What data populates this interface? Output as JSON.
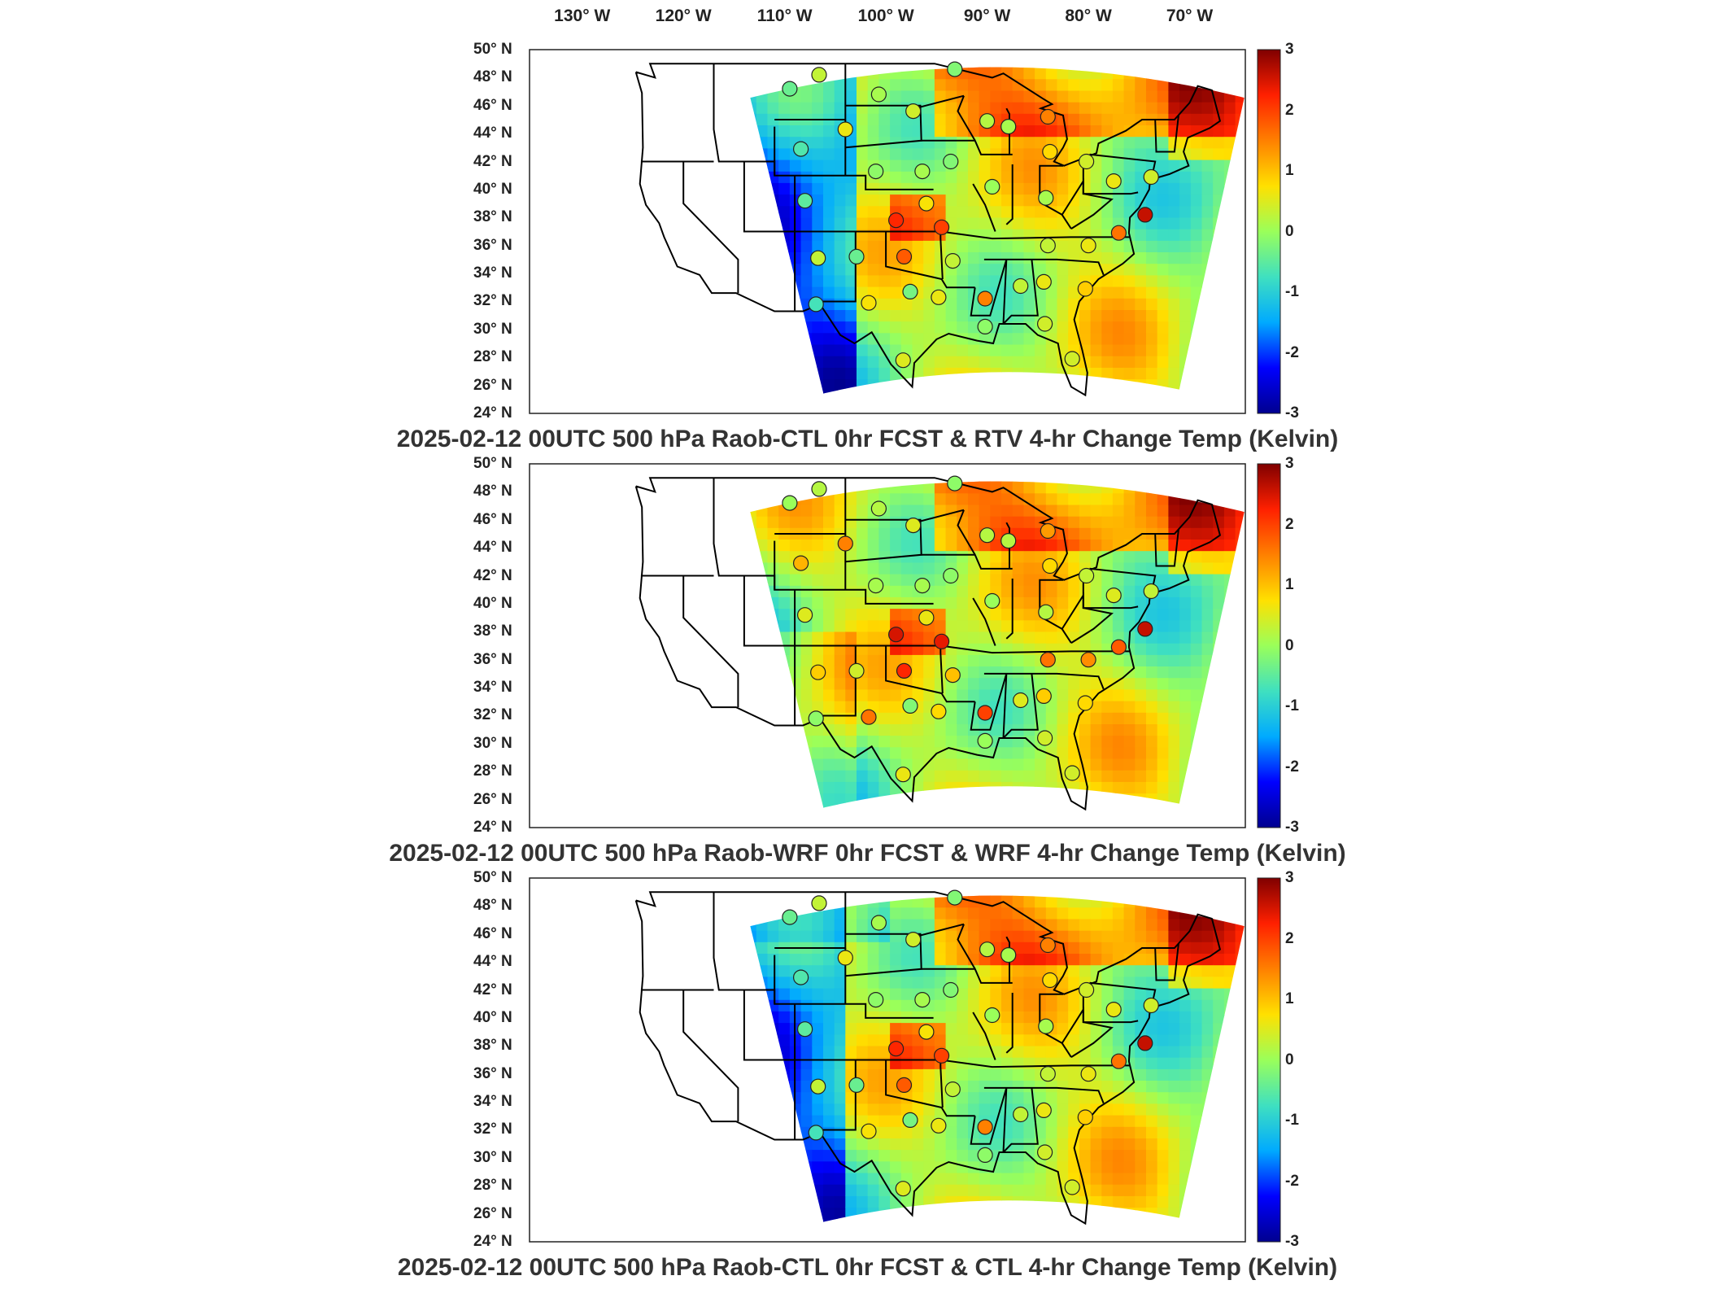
{
  "figure": {
    "lon_ticks": [
      "130",
      "120",
      "110",
      "100",
      "90",
      "80",
      "70"
    ],
    "lon_suffix": " W",
    "lat_ticks": [
      "50",
      "48",
      "46",
      "44",
      "42",
      "40",
      "38",
      "36",
      "34",
      "32",
      "30",
      "28",
      "26",
      "24"
    ],
    "lat_suffix": " N",
    "degree": "°",
    "colorbar": {
      "ticks": [
        "3",
        "2",
        "1",
        "0",
        "-1",
        "-2",
        "-3"
      ],
      "range": [
        -3,
        3
      ],
      "colors": [
        "#00008f",
        "#0000ff",
        "#00aaff",
        "#3fe0c0",
        "#9aff5a",
        "#ffe000",
        "#ff8000",
        "#ff2000",
        "#800000"
      ]
    }
  },
  "panels": [
    {
      "title": "2025-02-12 00UTC 500 hPa Raob-CTL 0hr FCST & RTV 4-hr Change Temp (Kelvin)",
      "field_style": "rtv",
      "stations": [
        {
          "lon": -109.5,
          "lat": 47.2,
          "v": -0.4
        },
        {
          "lon": -106.6,
          "lat": 48.2,
          "v": 0.3
        },
        {
          "lon": -100.7,
          "lat": 46.8,
          "v": 0.1
        },
        {
          "lon": -97.3,
          "lat": 45.6,
          "v": 0.4
        },
        {
          "lon": -93.2,
          "lat": 48.6,
          "v": -0.2
        },
        {
          "lon": -84.0,
          "lat": 45.2,
          "v": 1.5
        },
        {
          "lon": -90.0,
          "lat": 44.9,
          "v": 0.2
        },
        {
          "lon": -87.9,
          "lat": 44.5,
          "v": 0.1
        },
        {
          "lon": -104.0,
          "lat": 44.3,
          "v": 0.6
        },
        {
          "lon": -108.4,
          "lat": 42.9,
          "v": -0.6
        },
        {
          "lon": -101.0,
          "lat": 41.3,
          "v": -0.1
        },
        {
          "lon": -96.4,
          "lat": 41.3,
          "v": 0.1
        },
        {
          "lon": -93.6,
          "lat": 42.0,
          "v": -0.2
        },
        {
          "lon": -89.5,
          "lat": 40.2,
          "v": 0.0
        },
        {
          "lon": -83.8,
          "lat": 42.7,
          "v": 0.8
        },
        {
          "lon": -80.2,
          "lat": 42.0,
          "v": 0.4
        },
        {
          "lon": -84.2,
          "lat": 39.4,
          "v": 0.1
        },
        {
          "lon": -77.5,
          "lat": 40.6,
          "v": 0.6
        },
        {
          "lon": -73.8,
          "lat": 40.9,
          "v": 0.4
        },
        {
          "lon": -74.4,
          "lat": 38.2,
          "v": 2.6
        },
        {
          "lon": -77.0,
          "lat": 36.9,
          "v": 1.6
        },
        {
          "lon": -80.0,
          "lat": 36.0,
          "v": 0.6
        },
        {
          "lon": -84.0,
          "lat": 36.0,
          "v": 0.3
        },
        {
          "lon": -108.0,
          "lat": 39.2,
          "v": -0.5
        },
        {
          "lon": -99.0,
          "lat": 37.8,
          "v": 2.2
        },
        {
          "lon": -94.5,
          "lat": 37.3,
          "v": 2.0
        },
        {
          "lon": -96.0,
          "lat": 39.0,
          "v": 0.7
        },
        {
          "lon": -106.7,
          "lat": 35.1,
          "v": 0.3
        },
        {
          "lon": -102.9,
          "lat": 35.2,
          "v": -0.4
        },
        {
          "lon": -98.2,
          "lat": 35.2,
          "v": 1.8
        },
        {
          "lon": -93.4,
          "lat": 34.9,
          "v": 0.3
        },
        {
          "lon": -90.2,
          "lat": 32.2,
          "v": 1.5
        },
        {
          "lon": -86.7,
          "lat": 33.1,
          "v": 0.3
        },
        {
          "lon": -84.4,
          "lat": 33.4,
          "v": 0.6
        },
        {
          "lon": -80.3,
          "lat": 32.9,
          "v": 0.9
        },
        {
          "lon": -94.8,
          "lat": 32.3,
          "v": 0.6
        },
        {
          "lon": -101.7,
          "lat": 31.9,
          "v": 0.7
        },
        {
          "lon": -97.6,
          "lat": 32.7,
          "v": -0.3
        },
        {
          "lon": -106.9,
          "lat": 31.8,
          "v": -0.7
        },
        {
          "lon": -98.3,
          "lat": 27.8,
          "v": 0.5
        },
        {
          "lon": -90.2,
          "lat": 30.2,
          "v": -0.1
        },
        {
          "lon": -84.3,
          "lat": 30.4,
          "v": 0.4
        },
        {
          "lon": -81.6,
          "lat": 27.9,
          "v": 0.4
        }
      ]
    },
    {
      "title": "2025-02-12 00UTC 500 hPa Raob-WRF 0hr FCST & WRF 4-hr Change Temp (Kelvin)",
      "field_style": "wrf",
      "stations": [
        {
          "lon": -109.5,
          "lat": 47.2,
          "v": 0.0
        },
        {
          "lon": -106.6,
          "lat": 48.2,
          "v": 0.2
        },
        {
          "lon": -100.7,
          "lat": 46.8,
          "v": 0.2
        },
        {
          "lon": -97.3,
          "lat": 45.6,
          "v": 0.5
        },
        {
          "lon": -93.2,
          "lat": 48.6,
          "v": -0.1
        },
        {
          "lon": -84.0,
          "lat": 45.2,
          "v": 1.3
        },
        {
          "lon": -90.0,
          "lat": 44.9,
          "v": 0.2
        },
        {
          "lon": -87.9,
          "lat": 44.5,
          "v": 0.2
        },
        {
          "lon": -104.0,
          "lat": 44.3,
          "v": 1.5
        },
        {
          "lon": -108.4,
          "lat": 42.9,
          "v": 1.1
        },
        {
          "lon": -101.0,
          "lat": 41.3,
          "v": 0.1
        },
        {
          "lon": -96.4,
          "lat": 41.3,
          "v": 0.1
        },
        {
          "lon": -93.6,
          "lat": 42.0,
          "v": -0.1
        },
        {
          "lon": -89.5,
          "lat": 40.2,
          "v": 0.0
        },
        {
          "lon": -83.8,
          "lat": 42.7,
          "v": 0.8
        },
        {
          "lon": -80.2,
          "lat": 42.0,
          "v": 0.3
        },
        {
          "lon": -84.2,
          "lat": 39.4,
          "v": 0.2
        },
        {
          "lon": -77.5,
          "lat": 40.6,
          "v": 0.5
        },
        {
          "lon": -73.8,
          "lat": 40.9,
          "v": 0.3
        },
        {
          "lon": -74.4,
          "lat": 38.2,
          "v": 2.6
        },
        {
          "lon": -77.0,
          "lat": 36.9,
          "v": 1.8
        },
        {
          "lon": -80.0,
          "lat": 36.0,
          "v": 1.4
        },
        {
          "lon": -84.0,
          "lat": 36.0,
          "v": 1.6
        },
        {
          "lon": -108.0,
          "lat": 39.2,
          "v": 0.5
        },
        {
          "lon": -99.0,
          "lat": 37.8,
          "v": 2.5
        },
        {
          "lon": -94.5,
          "lat": 37.3,
          "v": 2.4
        },
        {
          "lon": -96.0,
          "lat": 39.0,
          "v": 0.6
        },
        {
          "lon": -106.7,
          "lat": 35.1,
          "v": 0.9
        },
        {
          "lon": -102.9,
          "lat": 35.2,
          "v": 0.4
        },
        {
          "lon": -98.2,
          "lat": 35.2,
          "v": 2.2
        },
        {
          "lon": -93.4,
          "lat": 34.9,
          "v": 1.0
        },
        {
          "lon": -90.2,
          "lat": 32.2,
          "v": 2.0
        },
        {
          "lon": -86.7,
          "lat": 33.1,
          "v": 0.5
        },
        {
          "lon": -84.4,
          "lat": 33.4,
          "v": 0.9
        },
        {
          "lon": -80.3,
          "lat": 32.9,
          "v": 0.8
        },
        {
          "lon": -94.8,
          "lat": 32.3,
          "v": 0.8
        },
        {
          "lon": -101.7,
          "lat": 31.9,
          "v": 1.6
        },
        {
          "lon": -97.6,
          "lat": 32.7,
          "v": -0.2
        },
        {
          "lon": -106.9,
          "lat": 31.8,
          "v": -0.1
        },
        {
          "lon": -98.3,
          "lat": 27.8,
          "v": 0.6
        },
        {
          "lon": -90.2,
          "lat": 30.2,
          "v": 0.0
        },
        {
          "lon": -84.3,
          "lat": 30.4,
          "v": 0.4
        },
        {
          "lon": -81.6,
          "lat": 27.9,
          "v": 0.4
        }
      ]
    },
    {
      "title": "2025-02-12 00UTC 500 hPa Raob-CTL 0hr FCST & CTL 4-hr Change Temp (Kelvin)",
      "field_style": "ctl",
      "stations": [
        {
          "lon": -109.5,
          "lat": 47.2,
          "v": -0.4
        },
        {
          "lon": -106.6,
          "lat": 48.2,
          "v": 0.3
        },
        {
          "lon": -100.7,
          "lat": 46.8,
          "v": 0.1
        },
        {
          "lon": -97.3,
          "lat": 45.6,
          "v": 0.4
        },
        {
          "lon": -93.2,
          "lat": 48.6,
          "v": -0.2
        },
        {
          "lon": -84.0,
          "lat": 45.2,
          "v": 1.5
        },
        {
          "lon": -90.0,
          "lat": 44.9,
          "v": 0.2
        },
        {
          "lon": -87.9,
          "lat": 44.5,
          "v": 0.1
        },
        {
          "lon": -104.0,
          "lat": 44.3,
          "v": 0.6
        },
        {
          "lon": -108.4,
          "lat": 42.9,
          "v": -0.6
        },
        {
          "lon": -101.0,
          "lat": 41.3,
          "v": -0.1
        },
        {
          "lon": -96.4,
          "lat": 41.3,
          "v": 0.1
        },
        {
          "lon": -93.6,
          "lat": 42.0,
          "v": -0.2
        },
        {
          "lon": -89.5,
          "lat": 40.2,
          "v": 0.0
        },
        {
          "lon": -83.8,
          "lat": 42.7,
          "v": 0.8
        },
        {
          "lon": -80.2,
          "lat": 42.0,
          "v": 0.4
        },
        {
          "lon": -84.2,
          "lat": 39.4,
          "v": 0.1
        },
        {
          "lon": -77.5,
          "lat": 40.6,
          "v": 0.6
        },
        {
          "lon": -73.8,
          "lat": 40.9,
          "v": 0.4
        },
        {
          "lon": -74.4,
          "lat": 38.2,
          "v": 2.6
        },
        {
          "lon": -77.0,
          "lat": 36.9,
          "v": 1.6
        },
        {
          "lon": -80.0,
          "lat": 36.0,
          "v": 0.6
        },
        {
          "lon": -84.0,
          "lat": 36.0,
          "v": 0.3
        },
        {
          "lon": -108.0,
          "lat": 39.2,
          "v": -0.5
        },
        {
          "lon": -99.0,
          "lat": 37.8,
          "v": 2.2
        },
        {
          "lon": -94.5,
          "lat": 37.3,
          "v": 2.0
        },
        {
          "lon": -96.0,
          "lat": 39.0,
          "v": 0.7
        },
        {
          "lon": -106.7,
          "lat": 35.1,
          "v": 0.3
        },
        {
          "lon": -102.9,
          "lat": 35.2,
          "v": -0.4
        },
        {
          "lon": -98.2,
          "lat": 35.2,
          "v": 1.8
        },
        {
          "lon": -93.4,
          "lat": 34.9,
          "v": 0.3
        },
        {
          "lon": -90.2,
          "lat": 32.2,
          "v": 1.5
        },
        {
          "lon": -86.7,
          "lat": 33.1,
          "v": 0.3
        },
        {
          "lon": -84.4,
          "lat": 33.4,
          "v": 0.6
        },
        {
          "lon": -80.3,
          "lat": 32.9,
          "v": 0.9
        },
        {
          "lon": -94.8,
          "lat": 32.3,
          "v": 0.6
        },
        {
          "lon": -101.7,
          "lat": 31.9,
          "v": 0.7
        },
        {
          "lon": -97.6,
          "lat": 32.7,
          "v": -0.3
        },
        {
          "lon": -106.9,
          "lat": 31.8,
          "v": -0.7
        },
        {
          "lon": -98.3,
          "lat": 27.8,
          "v": 0.5
        },
        {
          "lon": -90.2,
          "lat": 30.2,
          "v": -0.1
        },
        {
          "lon": -84.3,
          "lat": 30.4,
          "v": 0.4
        },
        {
          "lon": -81.6,
          "lat": 27.9,
          "v": 0.4
        }
      ]
    }
  ]
}
